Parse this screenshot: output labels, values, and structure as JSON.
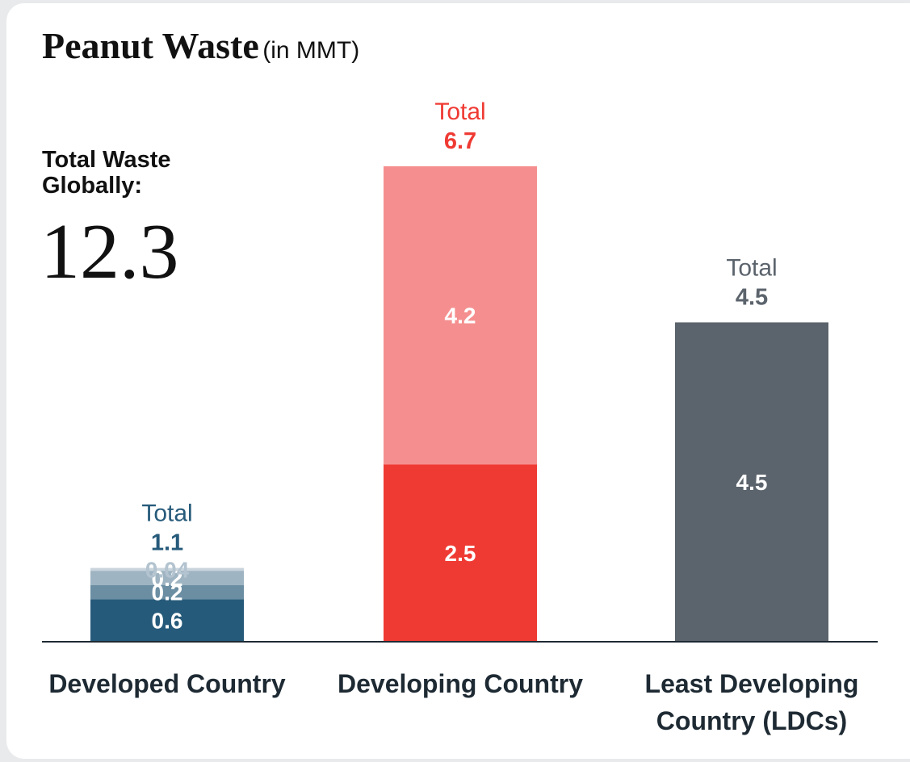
{
  "chart_data": {
    "type": "stacked_bar",
    "title": "Peanut Waste",
    "subtitle": "(in MMT)",
    "annotation": {
      "label": "Total Waste Globally:",
      "value": 12.3
    },
    "categories": [
      "Developed Country",
      "Developing Country",
      "Least Developing Country (LDCs)"
    ],
    "series": [
      {
        "values": [
          0.6,
          2.5,
          4.5
        ],
        "colors": [
          "#265a7a",
          "#ef3a33",
          "#5b636c"
        ],
        "label_colors": [
          "#ffffff",
          "#ffffff",
          "#ffffff"
        ]
      },
      {
        "values": [
          0.2,
          4.2,
          null
        ],
        "colors": [
          "#6b8ea3",
          "#f58f8f",
          null
        ],
        "label_colors": [
          "#ffffff",
          "#ffffff",
          null
        ]
      },
      {
        "values": [
          0.2,
          null,
          null
        ],
        "colors": [
          "#9fb4c2",
          null,
          null
        ],
        "label_colors": [
          "#ffffff",
          null,
          null
        ]
      },
      {
        "values": [
          0.04,
          null,
          null
        ],
        "colors": [
          "#c9d4dc",
          null,
          null
        ],
        "label_colors": [
          "#b3c3cf",
          null,
          null
        ]
      }
    ],
    "total_label": "Total",
    "totals": [
      1.1,
      6.7,
      4.5
    ],
    "total_colors": [
      "#265a7a",
      "#ef3a33",
      "#5b636c"
    ],
    "ylim": [
      0,
      6.7
    ]
  }
}
